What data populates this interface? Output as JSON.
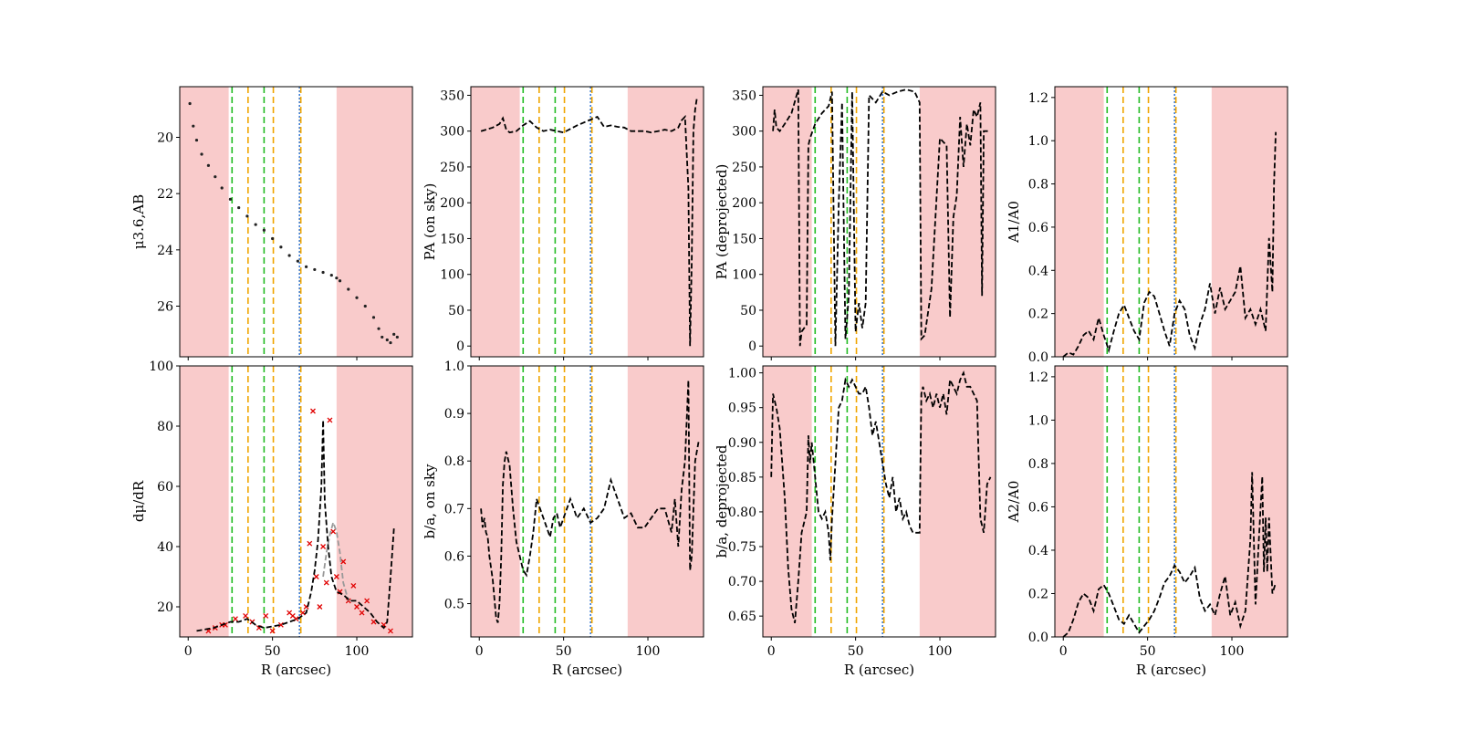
{
  "figure": {
    "colors": {
      "shade": "#f4a0a0",
      "green_line": "#22bb22",
      "orange_line": "#f0a500",
      "blue_line": "#3a7bd5",
      "curve": "#000000",
      "points": "#222222",
      "crosses": "#e00000",
      "grey_curve": "#999999"
    },
    "shade_regions": [
      [
        -5,
        24
      ],
      [
        88,
        135
      ]
    ],
    "vlines": [
      {
        "x": 26,
        "color": "green"
      },
      {
        "x": 35.5,
        "color": "orange"
      },
      {
        "x": 45,
        "color": "green"
      },
      {
        "x": 50.5,
        "color": "orange"
      },
      {
        "x": 66,
        "color": "blue"
      },
      {
        "x": 66.8,
        "color": "orange"
      }
    ],
    "xlabel": "R (arcsec)",
    "x_ticks": [
      "0",
      "50",
      "100"
    ]
  },
  "chart_data": [
    {
      "id": "p1",
      "type": "scatter",
      "ylabel": "μ3.6,AB",
      "inverted": true,
      "xlim": [
        -5,
        133
      ],
      "ylim": [
        18.2,
        27.8
      ],
      "yticks": [
        20,
        22,
        24,
        26
      ],
      "ytick_labels": [
        "20",
        "22",
        "24",
        "26"
      ],
      "x": [
        1,
        3,
        5,
        8,
        12,
        16,
        20,
        25,
        30,
        35,
        40,
        45,
        50,
        55,
        60,
        65,
        70,
        75,
        80,
        85,
        88,
        90,
        95,
        100,
        105,
        110,
        113,
        115,
        118,
        120,
        122,
        124
      ],
      "y": [
        18.8,
        19.6,
        20.1,
        20.6,
        21.0,
        21.4,
        21.8,
        22.2,
        22.5,
        22.8,
        23.1,
        23.3,
        23.6,
        23.9,
        24.2,
        24.4,
        24.6,
        24.7,
        24.8,
        24.9,
        25.0,
        25.1,
        25.4,
        25.7,
        26.0,
        26.4,
        26.8,
        27.1,
        27.2,
        27.3,
        27.0,
        27.1
      ]
    },
    {
      "id": "p2",
      "type": "line",
      "ylabel": "PA (on sky)",
      "xlim": [
        -5,
        133
      ],
      "ylim": [
        -15,
        362
      ],
      "yticks": [
        0,
        50,
        100,
        150,
        200,
        250,
        300,
        350
      ],
      "ytick_labels": [
        "0",
        "50",
        "100",
        "150",
        "200",
        "250",
        "300",
        "350"
      ],
      "x": [
        1,
        4,
        8,
        12,
        14,
        16,
        18,
        22,
        26,
        30,
        34,
        38,
        42,
        46,
        50,
        54,
        58,
        62,
        66,
        70,
        74,
        78,
        82,
        86,
        90,
        94,
        98,
        102,
        106,
        110,
        114,
        118,
        120,
        122,
        124,
        125,
        126,
        127,
        128,
        129,
        130
      ],
      "y": [
        300,
        302,
        305,
        310,
        318,
        302,
        298,
        300,
        308,
        314,
        305,
        300,
        302,
        300,
        298,
        303,
        308,
        312,
        316,
        320,
        306,
        308,
        306,
        305,
        300,
        300,
        300,
        298,
        300,
        302,
        300,
        305,
        315,
        320,
        220,
        0,
        120,
        300,
        330,
        345,
        345
      ]
    },
    {
      "id": "p3",
      "type": "line",
      "ylabel": "PA (deprojected)",
      "xlim": [
        -5,
        133
      ],
      "ylim": [
        -15,
        362
      ],
      "yticks": [
        0,
        50,
        100,
        150,
        200,
        250,
        300,
        350
      ],
      "ytick_labels": [
        "0",
        "50",
        "100",
        "150",
        "200",
        "250",
        "300",
        "350"
      ],
      "x": [
        1,
        2,
        3,
        5,
        8,
        12,
        16,
        17,
        18,
        21,
        22,
        23,
        26,
        30,
        34,
        36,
        38,
        40,
        42,
        44,
        46,
        48,
        50,
        52,
        54,
        56,
        58,
        60,
        62,
        66,
        70,
        75,
        80,
        85,
        88,
        89,
        91,
        95,
        100,
        102,
        104,
        106,
        108,
        110,
        112,
        114,
        116,
        118,
        120,
        122,
        124,
        125,
        126,
        128,
        130
      ],
      "y": [
        300,
        330,
        305,
        300,
        310,
        325,
        358,
        0,
        20,
        30,
        280,
        290,
        310,
        325,
        335,
        355,
        0,
        200,
        340,
        10,
        70,
        355,
        20,
        60,
        25,
        60,
        350,
        345,
        340,
        355,
        350,
        355,
        358,
        355,
        340,
        10,
        15,
        80,
        290,
        285,
        280,
        40,
        180,
        210,
        320,
        250,
        310,
        280,
        330,
        320,
        340,
        70,
        300,
        300,
        300
      ]
    },
    {
      "id": "p4",
      "type": "line",
      "ylabel": "A1/A0",
      "xlim": [
        -5,
        133
      ],
      "ylim": [
        0.0,
        1.25
      ],
      "yticks": [
        0.0,
        0.2,
        0.4,
        0.6,
        0.8,
        1.0,
        1.2
      ],
      "ytick_labels": [
        "0.0",
        "0.2",
        "0.4",
        "0.6",
        "0.8",
        "1.0",
        "1.2"
      ],
      "x": [
        0,
        3,
        6,
        9,
        12,
        15,
        18,
        21,
        24,
        27,
        30,
        33,
        36,
        39,
        42,
        45,
        48,
        51,
        54,
        57,
        60,
        63,
        66,
        69,
        72,
        75,
        78,
        81,
        84,
        87,
        90,
        93,
        96,
        99,
        102,
        105,
        108,
        111,
        114,
        117,
        120,
        122,
        124,
        125,
        126
      ],
      "y": [
        0,
        0.02,
        0.01,
        0.05,
        0.1,
        0.12,
        0.08,
        0.18,
        0.1,
        0.03,
        0.12,
        0.2,
        0.24,
        0.18,
        0.12,
        0.08,
        0.25,
        0.3,
        0.28,
        0.2,
        0.12,
        0.05,
        0.2,
        0.26,
        0.22,
        0.1,
        0.04,
        0.15,
        0.22,
        0.34,
        0.2,
        0.32,
        0.22,
        0.26,
        0.3,
        0.42,
        0.18,
        0.22,
        0.15,
        0.22,
        0.12,
        0.55,
        0.3,
        0.8,
        1.04
      ]
    },
    {
      "id": "p5",
      "type": "line",
      "ylabel": "dμ/dR",
      "xlim": [
        -5,
        133
      ],
      "ylim": [
        10,
        100
      ],
      "yticks": [
        20,
        40,
        60,
        80,
        100
      ],
      "ytick_labels": [
        "20",
        "40",
        "60",
        "80",
        "100"
      ],
      "x": [
        5,
        10,
        15,
        20,
        25,
        30,
        35,
        40,
        45,
        50,
        55,
        60,
        65,
        70,
        73,
        75,
        77,
        79,
        80,
        81,
        83,
        85,
        88,
        92,
        96,
        100,
        104,
        108,
        112,
        116,
        118,
        120,
        122
      ],
      "y": [
        12,
        12.5,
        13,
        14,
        15,
        15,
        16,
        14,
        13,
        13.5,
        14,
        15,
        16,
        18,
        25,
        32,
        42,
        60,
        82,
        55,
        40,
        30,
        25,
        24,
        22,
        22,
        20,
        18,
        15,
        13,
        15,
        30,
        46
      ],
      "grey": {
        "x": [
          80,
          82,
          84,
          86,
          88,
          90,
          92,
          95
        ],
        "y": [
          30,
          38,
          44,
          48,
          45,
          38,
          28,
          22
        ]
      },
      "crosses": {
        "x": [
          12,
          16,
          20,
          22,
          28,
          34,
          38,
          42,
          46,
          50,
          55,
          60,
          62,
          64,
          68,
          70,
          72,
          74,
          76,
          78,
          80,
          82,
          84,
          86,
          88,
          90,
          92,
          95,
          98,
          100,
          103,
          106,
          110,
          116,
          120
        ],
        "y": [
          12,
          13,
          14,
          14,
          16,
          17,
          15,
          13,
          17,
          12,
          14,
          18,
          17,
          16,
          18,
          20,
          41,
          85,
          30,
          20,
          40,
          28,
          82,
          45,
          30,
          25,
          35,
          22,
          27,
          20,
          18,
          22,
          15,
          14,
          12
        ]
      }
    },
    {
      "id": "p6",
      "type": "line",
      "ylabel": "b/a, on sky",
      "xlim": [
        -5,
        133
      ],
      "ylim": [
        0.43,
        1.0
      ],
      "yticks": [
        0.5,
        0.6,
        0.7,
        0.8,
        0.9,
        1.0
      ],
      "ytick_labels": [
        "0.5",
        "0.6",
        "0.7",
        "0.8",
        "0.9",
        "1.0"
      ],
      "x": [
        1,
        2,
        3,
        4,
        5,
        6,
        8,
        10,
        11,
        12,
        13,
        14,
        15,
        16,
        18,
        20,
        22,
        24,
        26,
        28,
        30,
        32,
        34,
        36,
        38,
        40,
        42,
        44,
        46,
        48,
        50,
        54,
        58,
        62,
        66,
        70,
        74,
        78,
        82,
        86,
        90,
        94,
        98,
        102,
        106,
        110,
        114,
        116,
        118,
        120,
        122,
        124,
        125,
        126,
        128,
        130
      ],
      "y": [
        0.7,
        0.66,
        0.68,
        0.65,
        0.64,
        0.6,
        0.55,
        0.47,
        0.46,
        0.5,
        0.6,
        0.75,
        0.8,
        0.82,
        0.79,
        0.7,
        0.63,
        0.6,
        0.57,
        0.56,
        0.6,
        0.65,
        0.72,
        0.7,
        0.68,
        0.66,
        0.64,
        0.68,
        0.69,
        0.66,
        0.68,
        0.72,
        0.68,
        0.7,
        0.67,
        0.68,
        0.7,
        0.76,
        0.72,
        0.68,
        0.69,
        0.66,
        0.66,
        0.68,
        0.7,
        0.7,
        0.65,
        0.72,
        0.62,
        0.74,
        0.8,
        0.97,
        0.57,
        0.6,
        0.8,
        0.84
      ]
    },
    {
      "id": "p7",
      "type": "line",
      "ylabel": "b/a, deprojected",
      "xlim": [
        -5,
        133
      ],
      "ylim": [
        0.62,
        1.01
      ],
      "yticks": [
        0.65,
        0.7,
        0.75,
        0.8,
        0.85,
        0.9,
        0.95,
        1.0
      ],
      "ytick_labels": [
        "0.65",
        "0.70",
        "0.75",
        "0.80",
        "0.85",
        "0.90",
        "0.95",
        "1.00"
      ],
      "x": [
        0,
        1,
        2,
        3,
        5,
        8,
        10,
        12,
        14,
        16,
        18,
        20,
        21,
        22,
        23,
        24,
        26,
        28,
        30,
        32,
        34,
        35,
        36,
        38,
        40,
        42,
        44,
        46,
        48,
        50,
        52,
        54,
        56,
        58,
        60,
        62,
        64,
        66,
        68,
        70,
        72,
        74,
        76,
        78,
        80,
        82,
        84,
        86,
        88,
        89,
        90,
        92,
        94,
        96,
        98,
        100,
        102,
        104,
        106,
        108,
        110,
        112,
        114,
        116,
        118,
        120,
        122,
        124,
        126,
        128,
        130
      ],
      "y": [
        0.85,
        0.97,
        0.96,
        0.95,
        0.92,
        0.82,
        0.72,
        0.66,
        0.64,
        0.7,
        0.77,
        0.79,
        0.8,
        0.91,
        0.87,
        0.9,
        0.85,
        0.8,
        0.79,
        0.8,
        0.77,
        0.73,
        0.79,
        0.87,
        0.95,
        0.96,
        0.99,
        0.98,
        0.99,
        0.98,
        0.97,
        0.97,
        0.98,
        0.95,
        0.91,
        0.93,
        0.9,
        0.87,
        0.84,
        0.82,
        0.85,
        0.8,
        0.82,
        0.79,
        0.8,
        0.78,
        0.77,
        0.77,
        0.77,
        0.97,
        0.98,
        0.96,
        0.97,
        0.95,
        0.97,
        0.95,
        0.97,
        0.94,
        0.99,
        0.98,
        0.97,
        0.99,
        1.0,
        0.98,
        0.98,
        0.97,
        0.96,
        0.79,
        0.77,
        0.84,
        0.85
      ]
    },
    {
      "id": "p8",
      "type": "line",
      "ylabel": "A2/A0",
      "xlim": [
        -5,
        133
      ],
      "ylim": [
        0.0,
        1.25
      ],
      "yticks": [
        0.0,
        0.2,
        0.4,
        0.6,
        0.8,
        1.0,
        1.2
      ],
      "ytick_labels": [
        "0.0",
        "0.2",
        "0.4",
        "0.6",
        "0.8",
        "1.0",
        "1.2"
      ],
      "x": [
        0,
        3,
        6,
        9,
        12,
        15,
        18,
        21,
        24,
        27,
        30,
        33,
        36,
        39,
        42,
        45,
        48,
        51,
        54,
        57,
        60,
        63,
        66,
        69,
        72,
        75,
        78,
        81,
        84,
        87,
        90,
        93,
        96,
        99,
        102,
        105,
        108,
        111,
        112,
        114,
        116,
        118,
        119,
        120,
        121,
        122,
        124,
        126
      ],
      "y": [
        0,
        0.02,
        0.08,
        0.16,
        0.2,
        0.18,
        0.12,
        0.22,
        0.24,
        0.2,
        0.14,
        0.08,
        0.06,
        0.1,
        0.06,
        0.02,
        0.05,
        0.08,
        0.12,
        0.18,
        0.25,
        0.28,
        0.33,
        0.3,
        0.25,
        0.28,
        0.32,
        0.18,
        0.12,
        0.15,
        0.1,
        0.2,
        0.28,
        0.1,
        0.16,
        0.05,
        0.12,
        0.45,
        0.76,
        0.15,
        0.45,
        0.74,
        0.3,
        0.55,
        0.3,
        0.55,
        0.2,
        0.25
      ]
    }
  ]
}
